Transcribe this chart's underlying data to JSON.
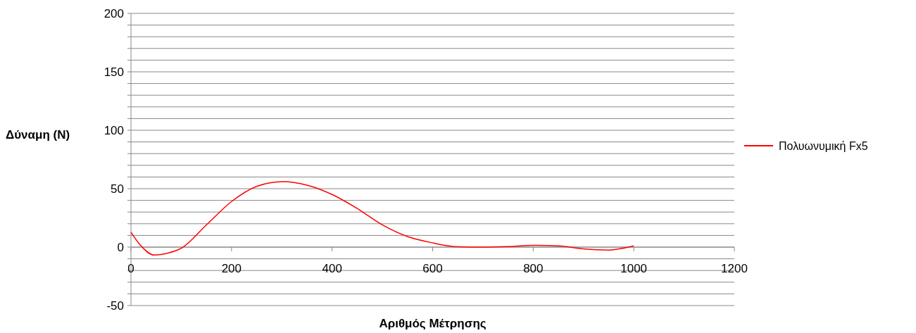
{
  "chart_data": {
    "type": "line",
    "xlabel": "Αριθμός Μέτρησης",
    "ylabel": "Δύναμη (N)",
    "x": [
      0,
      20,
      46,
      75,
      100,
      150,
      200,
      250,
      302,
      350,
      400,
      450,
      500,
      550,
      600,
      650,
      700,
      750,
      800,
      850,
      900,
      950,
      1000
    ],
    "series": [
      {
        "name": "Πολυωνυμική Fx5",
        "color": "#ff0000",
        "values": [
          12.7,
          1,
          -6.8,
          -5,
          -1,
          19,
          39,
          52,
          56,
          53,
          45,
          33,
          19,
          9,
          3.6,
          0.3,
          0,
          0.5,
          1.5,
          1,
          -1.5,
          -2.5,
          1
        ]
      }
    ],
    "xlim": [
      0,
      1200
    ],
    "xticks": [
      0,
      200,
      400,
      600,
      800,
      1000,
      1200
    ],
    "ylim": [
      -50,
      200
    ],
    "yticks": [
      -50,
      {
        "value": -40,
        "label": null
      },
      {
        "value": -30,
        "label": null
      },
      {
        "value": -20,
        "label": null
      },
      {
        "value": -10,
        "label": null
      },
      0,
      {
        "value": 10,
        "label": null
      },
      {
        "value": 20,
        "label": null
      },
      {
        "value": 30,
        "label": null
      },
      {
        "value": 40,
        "label": null
      },
      50,
      {
        "value": 60,
        "label": null
      },
      {
        "value": 70,
        "label": null
      },
      {
        "value": 80,
        "label": null
      },
      {
        "value": 90,
        "label": null
      },
      100,
      {
        "value": 110,
        "label": null
      },
      {
        "value": 120,
        "label": null
      },
      {
        "value": 130,
        "label": null
      },
      {
        "value": 140,
        "label": null
      },
      150,
      {
        "value": 160,
        "label": null
      },
      {
        "value": 170,
        "label": null
      },
      {
        "value": 180,
        "label": null
      },
      {
        "value": 190,
        "label": null
      },
      200
    ],
    "grid": "y",
    "legend": "right",
    "marker": "none",
    "line_style": "solid"
  }
}
